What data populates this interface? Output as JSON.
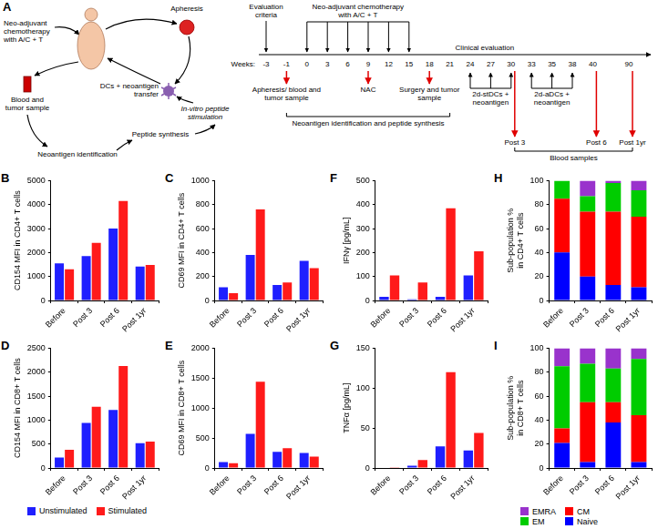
{
  "diagram": {
    "panel": "A",
    "cycle": {
      "chemo": "Neo-adjuvant chemotherapy with A/C + T",
      "apheresis": "Apheresis",
      "blood_tumor": "Blood and tumor sample",
      "dc_transfer": "DCs + neoantigen transfer",
      "stimulation": "In-vitro peptide stimulation",
      "synthesis": "Peptide synthesis",
      "identification": "Neoantigen identification"
    },
    "timeline": {
      "axis_label": "Weeks:",
      "weeks": [
        -3,
        -1,
        0,
        3,
        6,
        9,
        12,
        15,
        18,
        21,
        24,
        27,
        30,
        33,
        35,
        38,
        40,
        90
      ],
      "evaluation": {
        "label": "Evaluation criteria",
        "weeks": [
          -3
        ]
      },
      "chemo": {
        "label": "Neo-adjuvant chemotherapy with A/C + T",
        "weeks": [
          0,
          3,
          6,
          9,
          12,
          15
        ]
      },
      "clinical": "Clinical evaluation",
      "samples": [
        {
          "label": "Apheresis/ blood and tumor sample",
          "week": -1
        },
        {
          "label": "NAC",
          "week": 9
        },
        {
          "label": "Surgery and tumor sample",
          "week": 18
        }
      ],
      "vaccinations": [
        {
          "label": "2d-stDCs + neoantigen",
          "weeks": [
            24,
            27,
            30
          ]
        },
        {
          "label": "2d-aDCs + neoantigen",
          "weeks": [
            33,
            35,
            38
          ]
        }
      ],
      "blood_draws": [
        {
          "label": "Post 3",
          "week": 30
        },
        {
          "label": "Post 6",
          "week": 40
        },
        {
          "label": "Post 1yr",
          "week": 90
        }
      ],
      "brackets": [
        {
          "label": "Neoantigen identification and peptide synthesis",
          "from": -1,
          "to": 21
        },
        {
          "label": "Blood samples",
          "from": 30,
          "to": 90
        }
      ]
    }
  },
  "chart_data": [
    {
      "panel": "B",
      "type": "bar",
      "y_label": "CD154 MFI in CD4+ T cells",
      "categories": [
        "Before",
        "Post 3",
        "Post 6",
        "Post 1yr"
      ],
      "series": [
        {
          "name": "Unstimulated",
          "color": "#1f1fff",
          "values": [
            1550,
            1850,
            3000,
            1420
          ]
        },
        {
          "name": "Stimulated",
          "color": "#ff1a1a",
          "values": [
            1300,
            2400,
            4150,
            1480
          ]
        }
      ],
      "ylim": [
        0,
        5000
      ],
      "yticks": [
        0,
        1000,
        2000,
        3000,
        4000,
        5000
      ],
      "grid": false
    },
    {
      "panel": "C",
      "type": "bar",
      "y_label": "CD69 MFI in CD4+ T cells",
      "categories": [
        "Before",
        "Post 3",
        "Post 6",
        "Post 1yr"
      ],
      "series": [
        {
          "name": "Unstimulated",
          "color": "#1f1fff",
          "values": [
            110,
            380,
            130,
            330
          ]
        },
        {
          "name": "Stimulated",
          "color": "#ff1a1a",
          "values": [
            60,
            760,
            150,
            270
          ]
        }
      ],
      "ylim": [
        0,
        1000
      ],
      "yticks": [
        0,
        200,
        400,
        600,
        800,
        1000
      ],
      "grid": false
    },
    {
      "panel": "F",
      "type": "bar",
      "y_label": "IFNγ [pg/mL]",
      "categories": [
        "Before",
        "Post 3",
        "Post 6",
        "Post 1yr"
      ],
      "series": [
        {
          "name": "Unstimulated",
          "color": "#1f1fff",
          "values": [
            15,
            5,
            15,
            105
          ]
        },
        {
          "name": "Stimulated",
          "color": "#ff1a1a",
          "values": [
            105,
            75,
            385,
            205
          ]
        }
      ],
      "ylim": [
        0,
        500
      ],
      "yticks": [
        0,
        100,
        200,
        300,
        400,
        500
      ],
      "grid": false
    },
    {
      "panel": "H",
      "type": "bar",
      "stacked": true,
      "y_label": "Sub-population % in CD4+ T cells",
      "categories": [
        "Before",
        "Post 3",
        "Post 6",
        "Post 1yr"
      ],
      "series": [
        {
          "name": "Naive",
          "color": "#0000ff",
          "values": [
            40,
            20,
            13,
            11
          ]
        },
        {
          "name": "CM",
          "color": "#ff0000",
          "values": [
            45,
            54,
            61,
            59
          ]
        },
        {
          "name": "EM",
          "color": "#00cc00",
          "values": [
            15,
            13,
            24,
            22
          ]
        },
        {
          "name": "EMRA",
          "color": "#9933cc",
          "values": [
            0,
            13,
            2,
            8
          ]
        }
      ],
      "ylim": [
        0,
        100
      ],
      "yticks": [
        0,
        20,
        40,
        60,
        80,
        100
      ],
      "grid": false
    },
    {
      "panel": "D",
      "type": "bar",
      "y_label": "CD154 MFI in CD8+ T cells",
      "categories": [
        "Before",
        "Post 3",
        "Post 6",
        "Post 1yr"
      ],
      "series": [
        {
          "name": "Unstimulated",
          "color": "#1f1fff",
          "values": [
            220,
            940,
            1210,
            520
          ]
        },
        {
          "name": "Stimulated",
          "color": "#ff1a1a",
          "values": [
            380,
            1280,
            2130,
            550
          ]
        }
      ],
      "ylim": [
        0,
        2500
      ],
      "yticks": [
        0,
        500,
        1000,
        1500,
        2000,
        2500
      ],
      "grid": false,
      "legend": "bottom"
    },
    {
      "panel": "E",
      "type": "bar",
      "y_label": "CD69 MFI in CD8+ T cells",
      "categories": [
        "Before",
        "Post 3",
        "Post 6",
        "Post 1yr"
      ],
      "series": [
        {
          "name": "Unstimulated",
          "color": "#1f1fff",
          "values": [
            100,
            570,
            270,
            250
          ]
        },
        {
          "name": "Stimulated",
          "color": "#ff1a1a",
          "values": [
            80,
            1440,
            330,
            190
          ]
        }
      ],
      "ylim": [
        0,
        2000
      ],
      "yticks": [
        0,
        500,
        1000,
        1500,
        2000
      ],
      "grid": false
    },
    {
      "panel": "G",
      "type": "bar",
      "y_label": "TNFα [pg/mL]",
      "categories": [
        "Before",
        "Post 3",
        "Post 6",
        "Post 1yr"
      ],
      "series": [
        {
          "name": "Unstimulated",
          "color": "#1f1fff",
          "values": [
            0,
            3,
            27,
            22
          ]
        },
        {
          "name": "Stimulated",
          "color": "#ff1a1a",
          "values": [
            1,
            10,
            120,
            44
          ]
        }
      ],
      "ylim": [
        0,
        150
      ],
      "yticks": [
        0,
        50,
        100,
        150
      ],
      "grid": false
    },
    {
      "panel": "I",
      "type": "bar",
      "stacked": true,
      "y_label": "Sub-population % in CD8+ T cells",
      "categories": [
        "Before",
        "Post 3",
        "Post 6",
        "Post 1yr"
      ],
      "series": [
        {
          "name": "Naive",
          "color": "#0000ff",
          "values": [
            21,
            5,
            38,
            5
          ]
        },
        {
          "name": "CM",
          "color": "#ff0000",
          "values": [
            12,
            50,
            17,
            39
          ]
        },
        {
          "name": "EM",
          "color": "#00cc00",
          "values": [
            52,
            32,
            28,
            47
          ]
        },
        {
          "name": "EMRA",
          "color": "#9933cc",
          "values": [
            15,
            13,
            17,
            9
          ]
        }
      ],
      "ylim": [
        0,
        100
      ],
      "yticks": [
        0,
        20,
        40,
        60,
        80,
        100
      ],
      "grid": false,
      "legend": "bottom"
    }
  ]
}
